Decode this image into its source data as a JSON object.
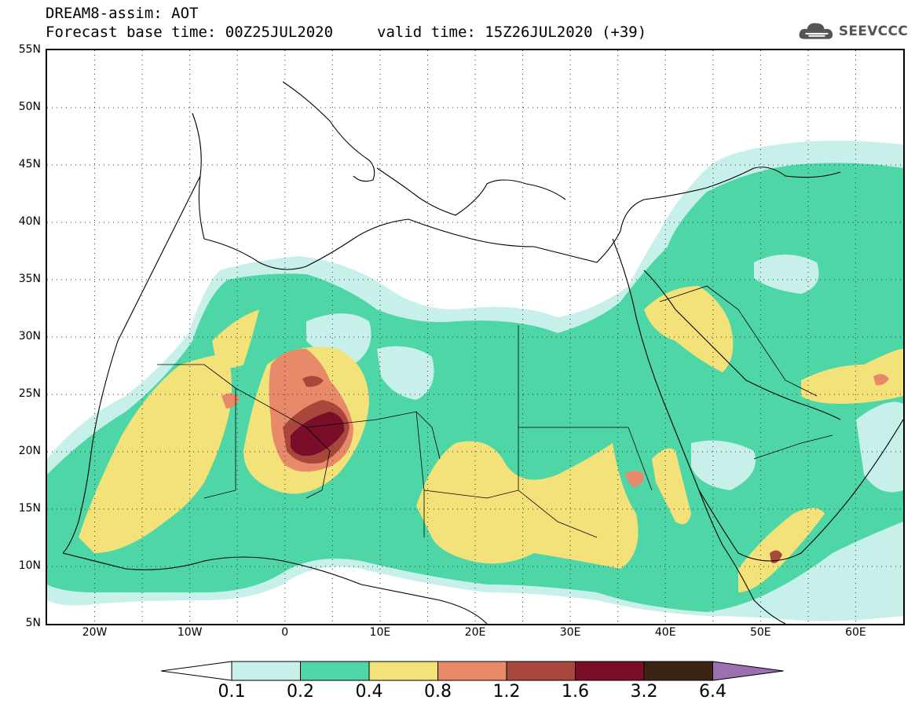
{
  "header": {
    "title": "DREAM8-assim: AOT",
    "base_time": "Forecast base time: 00Z25JUL2020",
    "valid_time": "valid time: 15Z26JUL2020 (+39)"
  },
  "logo": {
    "text": "SEEVCCC",
    "icon": "cloud-icon"
  },
  "map": {
    "lat_labels": [
      "55N",
      "50N",
      "45N",
      "40N",
      "35N",
      "30N",
      "25N",
      "20N",
      "15N",
      "10N",
      "5N"
    ],
    "lon_labels": [
      "20W",
      "10W",
      "0",
      "10E",
      "20E",
      "30E",
      "40E",
      "50E",
      "60E"
    ],
    "lon_range": [
      -25,
      65
    ],
    "lat_range": [
      5,
      55
    ],
    "gridlines": "dotted"
  },
  "colorbar": {
    "levels": [
      "0.1",
      "0.2",
      "0.4",
      "0.8",
      "1.2",
      "1.6",
      "3.2",
      "6.4"
    ],
    "colors": [
      "#c8f0ea",
      "#4fd6a6",
      "#f3e27a",
      "#e8896a",
      "#a8483d",
      "#7a0e2a",
      "#3b2414",
      "#9b6fb0"
    ],
    "under_color": "#ffffff"
  }
}
